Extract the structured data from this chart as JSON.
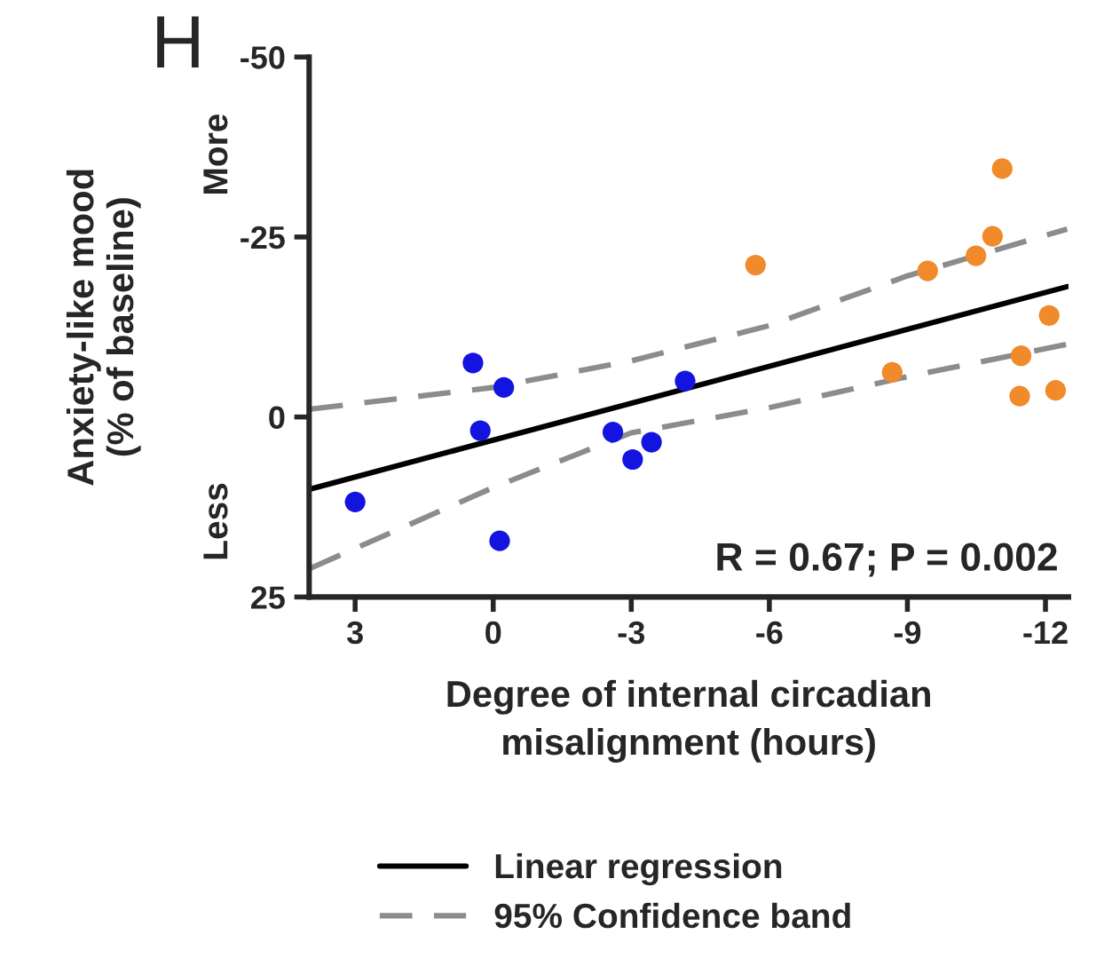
{
  "chart_data": {
    "type": "scatter",
    "xlabel": "Degree of internal circadian\nmisalignment (hours)",
    "ylabel": "Anxiety-like mood\n(% of baseline)",
    "xlim": [
      4,
      -12.5
    ],
    "xticks": [
      3,
      0,
      -3,
      -6,
      -9,
      -12
    ],
    "ylim": [
      25,
      -50
    ],
    "yticks": [
      -50,
      -25,
      0,
      25
    ],
    "grid": false,
    "legend": "bottom",
    "marker": "circle",
    "series": [
      {
        "color": "#1414e0",
        "x": [
          0.44,
          0.28,
          -0.23,
          -0.14,
          3.0,
          -2.6,
          -3.03,
          -3.44,
          -4.17
        ],
        "values": [
          -7.5,
          1.9,
          -4.1,
          17.2,
          11.8,
          2.1,
          5.9,
          3.5,
          -5.0
        ]
      },
      {
        "color": "#f08a2a",
        "x": [
          -5.7,
          -8.67,
          -9.44,
          -10.49,
          -10.85,
          -11.06,
          -11.47,
          -11.44,
          -12.08,
          -12.22
        ],
        "values": [
          -21.1,
          -6.2,
          -20.3,
          -22.4,
          -25.1,
          -34.5,
          -8.5,
          -2.9,
          -14.1,
          -3.7
        ]
      },
      {
        "type": "line",
        "name": "Linear regression",
        "color": "#000000",
        "line_style": "solid",
        "marker": "none",
        "x": [
          3.97,
          -12.47
        ],
        "values": [
          10.0,
          -18.1
        ]
      },
      {
        "type": "line",
        "name": "95% Confidence band",
        "color": "#8c8c8c",
        "line_style": "dashed",
        "marker": "none",
        "x": [
          3.97,
          0,
          -3,
          -6,
          -9,
          -12.47
        ],
        "values": [
          -1.1,
          -4.1,
          -7.8,
          -12.7,
          -19.6,
          -26.1
        ]
      },
      {
        "type": "line",
        "color": "#8c8c8c",
        "line_style": "dashed",
        "marker": "none",
        "x": [
          3.97,
          0,
          -3,
          -6,
          -9,
          -12.47
        ],
        "values": [
          21.0,
          9.8,
          2.2,
          -1.3,
          -5.6,
          -10.1
        ]
      }
    ],
    "annotations": [
      "H",
      "More",
      "Less",
      "R = 0.67; P = 0.002"
    ]
  }
}
